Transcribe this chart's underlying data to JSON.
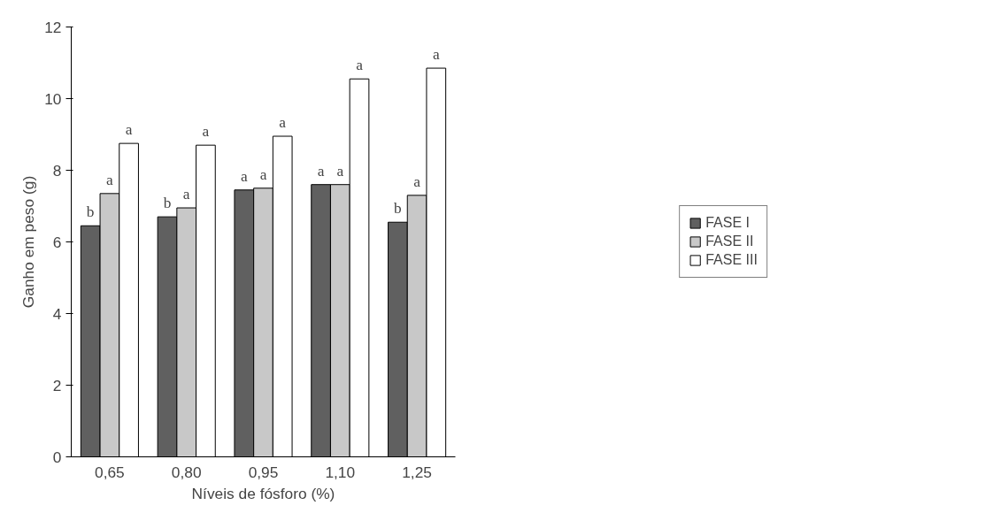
{
  "chart_data": {
    "type": "bar",
    "xlabel": "Níveis de fósforo (%)",
    "ylabel": "Ganho em peso (g)",
    "categories": [
      "0,65",
      "0,80",
      "0,95",
      "1,10",
      "1,25"
    ],
    "series": [
      {
        "name": "FASE I",
        "color": "#606060",
        "values": [
          6.45,
          6.7,
          7.45,
          7.6,
          6.55
        ],
        "value_labels": [
          "b",
          "b",
          "a",
          "a",
          "b"
        ]
      },
      {
        "name": "FASE II",
        "color": "#c8c8c8",
        "values": [
          7.35,
          6.95,
          7.5,
          7.6,
          7.3
        ],
        "value_labels": [
          "a",
          "a",
          "a",
          "a",
          "a"
        ]
      },
      {
        "name": "FASE III",
        "color": "#ffffff",
        "values": [
          8.75,
          8.7,
          8.95,
          10.55,
          10.85
        ],
        "value_labels": [
          "a",
          "a",
          "a",
          "a",
          "a"
        ]
      }
    ],
    "ylim": [
      0,
      12
    ],
    "yticks": [
      0,
      2,
      4,
      6,
      8,
      10,
      12
    ],
    "grid": false,
    "legend": "right"
  }
}
